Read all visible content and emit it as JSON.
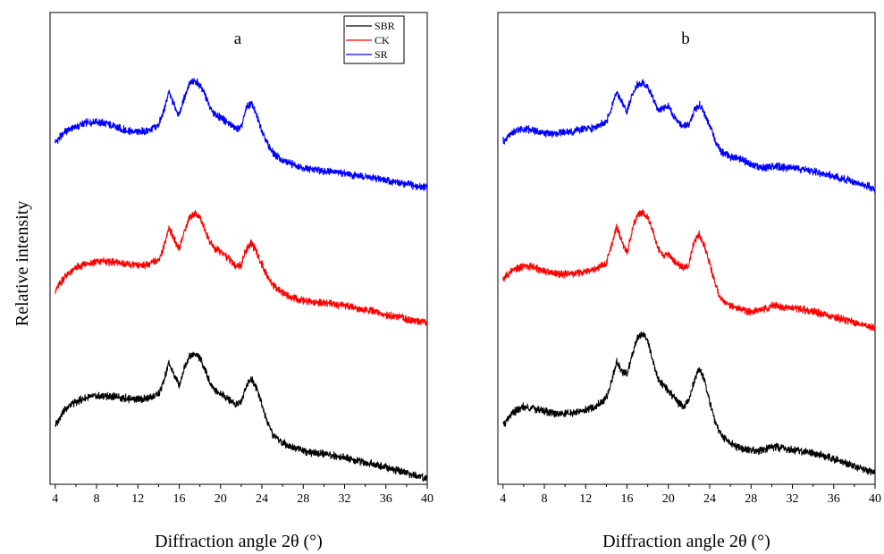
{
  "chart_data": [
    {
      "type": "line",
      "panel_label": "a",
      "xlabel": "Diffraction angle 2θ (°)",
      "ylabel": "Relative intensity",
      "xlim": [
        3.5,
        40
      ],
      "ylim": [
        0,
        100
      ],
      "x_ticks": [
        4,
        8,
        12,
        16,
        20,
        24,
        28,
        32,
        36,
        40
      ],
      "grid": false,
      "legend": {
        "placement": "top-right",
        "entries": [
          {
            "name": "SBR",
            "color": "#000000"
          },
          {
            "name": "CK",
            "color": "#ff0000"
          },
          {
            "name": "SR",
            "color": "#0000ff"
          }
        ]
      },
      "series": [
        {
          "name": "SR",
          "color": "#0000ff",
          "x": [
            4,
            5,
            6,
            7,
            8,
            9,
            10,
            11,
            12,
            13,
            14,
            14.5,
            15,
            15.5,
            16,
            16.5,
            17,
            17.5,
            18,
            18.5,
            19,
            19.5,
            20,
            20.5,
            21,
            21.5,
            22,
            22.5,
            23,
            23.5,
            24,
            24.5,
            25,
            26,
            27,
            28,
            29,
            30,
            31,
            32,
            33,
            34,
            35,
            36,
            37,
            38,
            39,
            40
          ],
          "y": [
            72.4,
            74.8,
            75.8,
            76.6,
            76.9,
            76.4,
            75.6,
            74.9,
            74.7,
            74.9,
            76.2,
            79.0,
            83.1,
            80.5,
            78.2,
            82.1,
            84.9,
            85.4,
            84.7,
            82.5,
            79.6,
            78.3,
            77.8,
            76.9,
            76.2,
            75.4,
            75.6,
            79.8,
            80.7,
            78.1,
            75.1,
            72.3,
            70.5,
            68.6,
            67.8,
            67.2,
            66.7,
            66.5,
            66.3,
            65.9,
            65.5,
            65.2,
            64.9,
            64.5,
            64.0,
            63.6,
            63.2,
            62.8
          ]
        },
        {
          "name": "CK",
          "color": "#ff0000",
          "x": [
            4,
            5,
            6,
            7,
            8,
            9,
            10,
            11,
            12,
            13,
            14,
            14.5,
            15,
            15.5,
            16,
            16.5,
            17,
            17.5,
            18,
            18.5,
            19,
            19.5,
            20,
            20.5,
            21,
            21.5,
            22,
            22.5,
            23,
            23.5,
            24,
            24.5,
            25,
            26,
            27,
            28,
            29,
            30,
            31,
            32,
            33,
            34,
            35,
            36,
            37,
            38,
            39,
            40
          ],
          "y": [
            41.1,
            44.2,
            45.8,
            46.8,
            47.2,
            47.2,
            47.0,
            46.6,
            46.3,
            46.6,
            47.6,
            50.1,
            54.5,
            51.9,
            50.0,
            53.6,
            56.6,
            57.5,
            56.6,
            54.0,
            51.1,
            49.8,
            49.3,
            48.4,
            47.2,
            46.3,
            46.5,
            49.9,
            51.2,
            49.0,
            46.6,
            44.1,
            42.5,
            40.5,
            39.4,
            38.9,
            38.6,
            38.4,
            38.2,
            37.9,
            37.5,
            37.0,
            36.6,
            36.0,
            35.5,
            35.0,
            34.6,
            34.2
          ]
        },
        {
          "name": "SBR",
          "color": "#000000",
          "x": [
            4,
            5,
            6,
            7,
            8,
            9,
            10,
            11,
            12,
            13,
            14,
            14.5,
            15,
            15.5,
            16,
            16.5,
            17,
            17.5,
            18,
            18.5,
            19,
            19.5,
            20,
            20.5,
            21,
            21.5,
            22,
            22.5,
            23,
            23.5,
            24,
            24.5,
            25,
            26,
            27,
            28,
            29,
            30,
            31,
            32,
            33,
            34,
            35,
            36,
            37,
            38,
            39,
            40
          ],
          "y": [
            12.6,
            16.1,
            17.5,
            18.3,
            18.6,
            18.7,
            18.5,
            18.2,
            18.0,
            18.2,
            19.1,
            21.7,
            25.7,
            23.2,
            21.0,
            24.8,
            27.3,
            27.6,
            26.8,
            24.4,
            21.3,
            19.9,
            19.2,
            18.5,
            17.6,
            17.0,
            17.5,
            21.1,
            22.4,
            20.3,
            16.8,
            13.3,
            10.6,
            8.8,
            7.9,
            7.2,
            6.6,
            6.4,
            6.0,
            5.6,
            5.1,
            4.6,
            4.2,
            3.6,
            3.0,
            2.4,
            1.8,
            1.3
          ]
        }
      ]
    },
    {
      "type": "line",
      "panel_label": "b",
      "xlabel": "Diffraction angle 2θ (°)",
      "ylabel": "",
      "xlim": [
        3.5,
        40
      ],
      "ylim": [
        0,
        100
      ],
      "x_ticks": [
        4,
        8,
        12,
        16,
        20,
        24,
        28,
        32,
        36,
        40
      ],
      "grid": false,
      "series": [
        {
          "name": "SR",
          "color": "#0000ff",
          "x": [
            4,
            5,
            6,
            7,
            8,
            9,
            10,
            11,
            12,
            13,
            14,
            14.5,
            15,
            15.5,
            16,
            16.5,
            17,
            17.5,
            18,
            18.5,
            19,
            19.5,
            20,
            20.5,
            21,
            21.5,
            22,
            22.5,
            23,
            23.5,
            24,
            24.5,
            25,
            26,
            27,
            28,
            29,
            30,
            31,
            32,
            33,
            34,
            35,
            36,
            37,
            38,
            39,
            40
          ],
          "y": [
            72.6,
            74.6,
            75.4,
            74.9,
            74.5,
            74.3,
            74.6,
            74.9,
            75.3,
            75.7,
            76.8,
            79.7,
            83.2,
            81.2,
            78.8,
            82.8,
            84.7,
            85.0,
            84.4,
            81.8,
            79.4,
            79.8,
            80.3,
            77.8,
            76.6,
            76.1,
            76.3,
            79.1,
            80.4,
            78.5,
            75.9,
            72.9,
            70.8,
            69.5,
            68.9,
            67.8,
            67.0,
            67.5,
            67.2,
            67.0,
            66.8,
            66.4,
            65.8,
            65.3,
            64.7,
            64.1,
            63.4,
            62.5
          ]
        },
        {
          "name": "CK",
          "color": "#ff0000",
          "x": [
            4,
            5,
            6,
            7,
            8,
            9,
            10,
            11,
            12,
            13,
            14,
            14.5,
            15,
            15.5,
            16,
            16.5,
            17,
            17.5,
            18,
            18.5,
            19,
            19.5,
            20,
            20.5,
            21,
            21.5,
            22,
            22.5,
            23,
            23.5,
            24,
            24.5,
            25,
            26,
            27,
            28,
            29,
            30,
            31,
            32,
            33,
            34,
            35,
            36,
            37,
            38,
            39,
            40
          ],
          "y": [
            43.6,
            45.4,
            46.3,
            46.0,
            45.2,
            44.7,
            44.5,
            44.6,
            45.0,
            45.5,
            46.9,
            50.8,
            54.5,
            51.6,
            49.0,
            54.0,
            57.2,
            57.7,
            56.4,
            53.6,
            49.9,
            48.4,
            48.7,
            47.5,
            46.4,
            45.9,
            46.6,
            51.7,
            53.0,
            50.4,
            46.7,
            42.8,
            39.5,
            37.9,
            37.0,
            36.5,
            37.0,
            37.8,
            37.6,
            37.3,
            37.0,
            36.6,
            36.1,
            35.5,
            34.9,
            34.3,
            33.7,
            33.1
          ]
        },
        {
          "name": "SBR",
          "color": "#000000",
          "x": [
            4,
            5,
            6,
            7,
            8,
            9,
            10,
            11,
            12,
            13,
            14,
            14.5,
            15,
            15.5,
            16,
            16.5,
            17,
            17.5,
            18,
            18.5,
            19,
            19.5,
            20,
            20.5,
            21,
            21.5,
            22,
            22.5,
            23,
            23.5,
            24,
            24.5,
            25,
            26,
            27,
            28,
            29,
            30,
            31,
            32,
            33,
            34,
            35,
            36,
            37,
            38,
            39,
            40
          ],
          "y": [
            12.6,
            15.2,
            16.4,
            16.1,
            15.5,
            15.0,
            14.9,
            15.2,
            15.7,
            16.6,
            18.3,
            21.8,
            26.0,
            24.0,
            23.3,
            27.4,
            31.2,
            31.9,
            30.4,
            26.2,
            22.3,
            20.9,
            20.0,
            18.6,
            17.2,
            16.4,
            17.7,
            22.0,
            24.4,
            21.9,
            17.4,
            13.5,
            10.6,
            8.6,
            7.6,
            7.1,
            7.2,
            7.9,
            7.6,
            7.3,
            7.0,
            6.7,
            6.1,
            5.4,
            4.6,
            3.8,
            3.2,
            2.4
          ]
        }
      ]
    }
  ]
}
